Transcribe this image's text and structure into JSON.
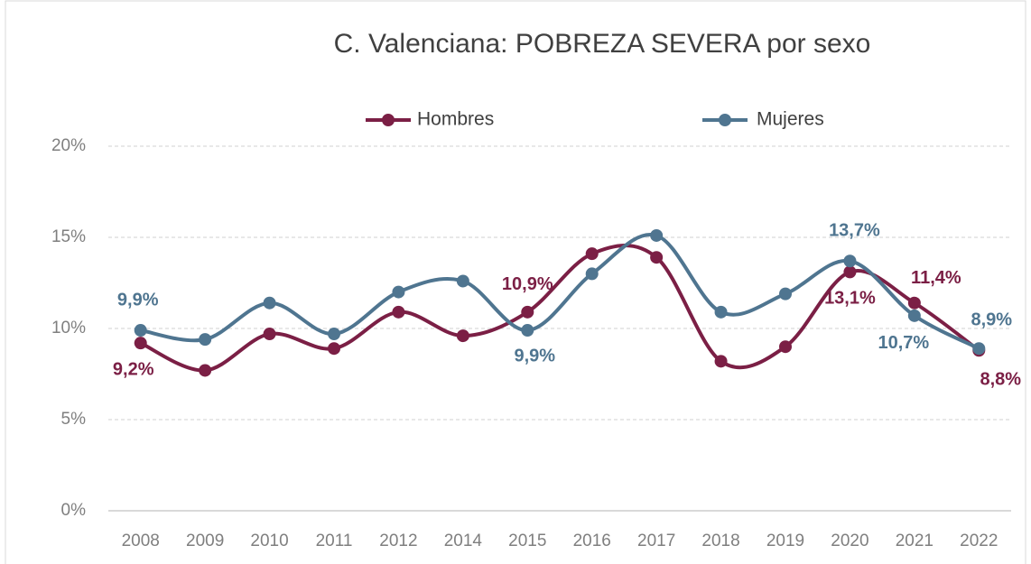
{
  "chart_data": {
    "type": "line",
    "title": "C. Valenciana: POBREZA SEVERA por sexo",
    "categories": [
      "2008",
      "2009",
      "2010",
      "2011",
      "2012",
      "2014",
      "2015",
      "2016",
      "2017",
      "2018",
      "2019",
      "2020",
      "2021",
      "2022"
    ],
    "series": [
      {
        "name": "Hombres",
        "color": "#7b1f45",
        "values": [
          9.2,
          7.7,
          9.7,
          8.9,
          10.9,
          9.6,
          10.9,
          14.1,
          13.9,
          8.2,
          9.0,
          13.1,
          11.4,
          8.8
        ],
        "value_labels": [
          "9,2%",
          null,
          null,
          null,
          null,
          null,
          "10,9%",
          null,
          null,
          null,
          null,
          "13,1%",
          "11,4%",
          "8,8%"
        ]
      },
      {
        "name": "Mujeres",
        "color": "#4f7590",
        "values": [
          9.9,
          9.4,
          11.4,
          9.7,
          12.0,
          12.6,
          9.9,
          13.0,
          15.1,
          10.9,
          11.9,
          13.7,
          10.7,
          8.9
        ],
        "value_labels": [
          "9,9%",
          null,
          null,
          null,
          null,
          null,
          "9,9%",
          null,
          null,
          null,
          null,
          "13,7%",
          "10,7%",
          "8,9%"
        ]
      }
    ],
    "ylim": [
      0,
      20
    ],
    "yticks": [
      {
        "value": 0,
        "label": "0%"
      },
      {
        "value": 5,
        "label": "5%"
      },
      {
        "value": 10,
        "label": "10%"
      },
      {
        "value": 15,
        "label": "15%"
      },
      {
        "value": 20,
        "label": "20%"
      }
    ],
    "grid": true,
    "legend": "top"
  }
}
